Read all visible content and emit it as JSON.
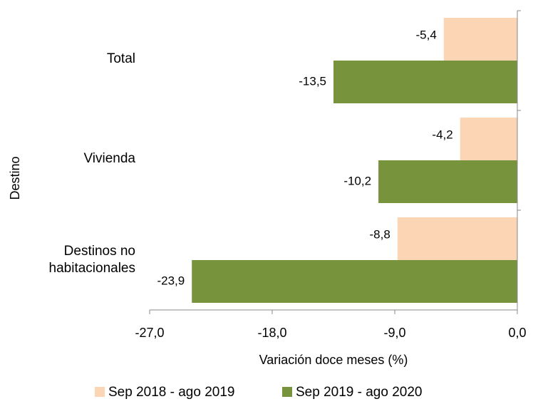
{
  "chart_data": {
    "type": "hbar",
    "x_label": "Variación doce meses (%)",
    "y_label": "Destino",
    "categories": [
      "Total",
      "Vivienda",
      "Destinos no habitacionales"
    ],
    "series": [
      {
        "name": "Sep 2018 - ago 2019",
        "color": "#fcd5b5",
        "values": [
          -5.4,
          -4.2,
          -8.8
        ],
        "value_labels": [
          "-5,4",
          "-4,2",
          "-8,8"
        ]
      },
      {
        "name": "Sep 2019 - ago 2020",
        "color": "#77933c",
        "values": [
          -13.5,
          -10.2,
          -23.9
        ],
        "value_labels": [
          "-13,5",
          "-10,2",
          "-23,9"
        ]
      }
    ],
    "xlim": [
      -27,
      0
    ],
    "xticks": [
      {
        "value": -27,
        "label": "-27,0"
      },
      {
        "value": -18,
        "label": "-18,0"
      },
      {
        "value": -9,
        "label": "-9,0"
      },
      {
        "value": 0,
        "label": "0,0"
      }
    ],
    "legend": "bottom"
  }
}
